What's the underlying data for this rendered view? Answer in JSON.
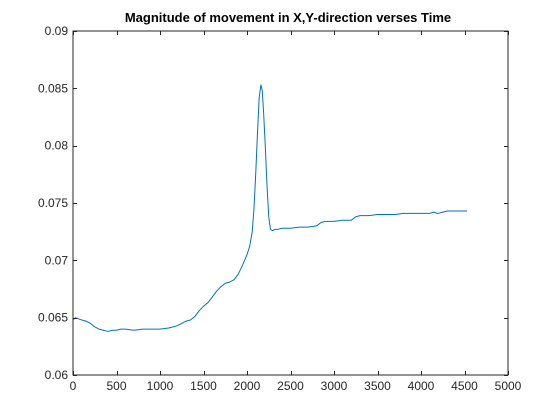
{
  "chart_data": {
    "type": "line",
    "title": "Magnitude of movement in X,Y-direction verses Time",
    "xlabel": "",
    "ylabel": "",
    "xlim": [
      0,
      5000
    ],
    "ylim": [
      0.06,
      0.09
    ],
    "xticks": [
      0,
      500,
      1000,
      1500,
      2000,
      2500,
      3000,
      3500,
      4000,
      4500,
      5000
    ],
    "xtick_labels": [
      "0",
      "500",
      "1000",
      "1500",
      "2000",
      "2500",
      "3000",
      "3500",
      "4000",
      "4500",
      "5000"
    ],
    "yticks": [
      0.06,
      0.065,
      0.07,
      0.075,
      0.08,
      0.085,
      0.09
    ],
    "ytick_labels": [
      "0.06",
      "0.065",
      "0.07",
      "0.075",
      "0.08",
      "0.085",
      "0.09"
    ],
    "grid": false,
    "legend": "none",
    "series": [
      {
        "color": "#0072BD",
        "x": [
          0,
          30,
          60,
          100,
          150,
          200,
          250,
          300,
          350,
          400,
          450,
          500,
          550,
          600,
          700,
          800,
          900,
          1000,
          1100,
          1150,
          1200,
          1250,
          1300,
          1350,
          1400,
          1450,
          1500,
          1550,
          1600,
          1650,
          1700,
          1750,
          1800,
          1850,
          1900,
          1950,
          2000,
          2030,
          2060,
          2080,
          2100,
          2120,
          2140,
          2160,
          2175,
          2190,
          2210,
          2230,
          2250,
          2270,
          2290,
          2300,
          2320,
          2350,
          2400,
          2500,
          2600,
          2700,
          2800,
          2850,
          2900,
          3000,
          3100,
          3200,
          3250,
          3300,
          3400,
          3500,
          3600,
          3700,
          3800,
          3900,
          4000,
          4100,
          4150,
          4180,
          4200,
          4250,
          4300,
          4400,
          4500,
          4530
        ],
        "values": [
          0.0648,
          0.065,
          0.0649,
          0.0648,
          0.0647,
          0.0645,
          0.0642,
          0.064,
          0.0639,
          0.0638,
          0.0639,
          0.0639,
          0.064,
          0.064,
          0.0639,
          0.064,
          0.064,
          0.064,
          0.0641,
          0.0642,
          0.0643,
          0.0645,
          0.0647,
          0.0648,
          0.0651,
          0.0656,
          0.066,
          0.0663,
          0.0668,
          0.0673,
          0.0677,
          0.068,
          0.0681,
          0.0683,
          0.0688,
          0.0696,
          0.0705,
          0.0712,
          0.0725,
          0.0745,
          0.0775,
          0.081,
          0.0842,
          0.0853,
          0.0848,
          0.083,
          0.08,
          0.0765,
          0.0738,
          0.0727,
          0.0726,
          0.0726,
          0.0727,
          0.0727,
          0.0728,
          0.0728,
          0.0729,
          0.0729,
          0.073,
          0.0733,
          0.0734,
          0.0734,
          0.0735,
          0.0735,
          0.0738,
          0.0739,
          0.0739,
          0.074,
          0.074,
          0.074,
          0.0741,
          0.0741,
          0.0741,
          0.0741,
          0.0742,
          0.0741,
          0.0741,
          0.0742,
          0.0743,
          0.0743,
          0.0743,
          0.0743
        ]
      }
    ]
  }
}
